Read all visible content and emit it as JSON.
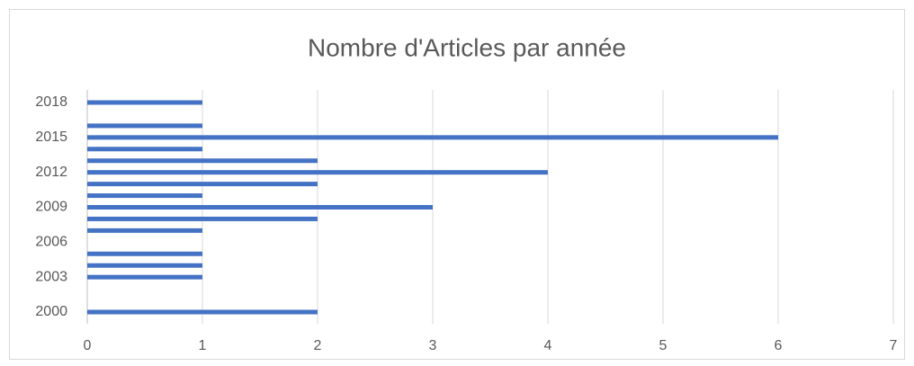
{
  "chart_data": {
    "type": "barh",
    "title": "Nombre d'Articles par année",
    "categories": [
      "2000",
      null,
      null,
      "2003",
      null,
      null,
      "2006",
      null,
      null,
      "2009",
      null,
      null,
      "2012",
      null,
      null,
      "2015",
      null,
      null,
      "2018"
    ],
    "values": [
      2,
      0,
      0,
      1,
      1,
      1,
      0,
      1,
      2,
      3,
      1,
      2,
      4,
      2,
      1,
      6,
      1,
      0,
      1
    ],
    "color": "#4472c4",
    "xlim": [
      0,
      7
    ],
    "xticks": [
      0,
      1,
      2,
      3,
      4,
      5,
      6,
      7
    ],
    "grid": true
  }
}
